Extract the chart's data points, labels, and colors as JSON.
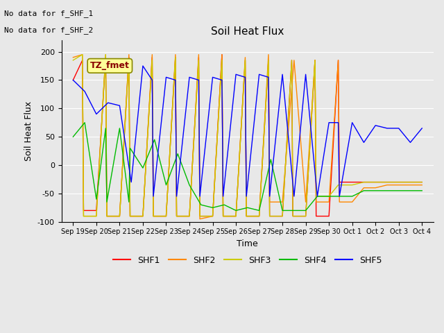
{
  "title": "Soil Heat Flux",
  "xlabel": "Time",
  "ylabel": "Soil Heat Flux",
  "ylim": [
    -100,
    220
  ],
  "yticks": [
    -100,
    -50,
    0,
    50,
    100,
    150,
    200
  ],
  "annotation_text1": "No data for f_SHF_1",
  "annotation_text2": "No data for f_SHF_2",
  "tz_label": "TZ_fmet",
  "legend_entries": [
    "SHF1",
    "SHF2",
    "SHF3",
    "SHF4",
    "SHF5"
  ],
  "colors": {
    "SHF1": "#ff0000",
    "SHF2": "#ff8800",
    "SHF3": "#cccc00",
    "SHF4": "#00bb00",
    "SHF5": "#0000ff"
  },
  "background_color": "#e8e8e8",
  "fig_background": "#e8e8e8",
  "tz_box_facecolor": "#ffff99",
  "tz_box_edgecolor": "#888800",
  "tz_text_color": "#880000",
  "x_tick_labels": [
    "Sep 19",
    "Sep 20",
    "Sep 21",
    "Sep 22",
    "Sep 23",
    "Sep 24",
    "Sep 25",
    "Sep 26",
    "Sep 27",
    "Sep 28",
    "Sep 29",
    "Sep 30",
    "Oct 1",
    "Oct 2",
    "Oct 3",
    "Oct 4"
  ],
  "SHF1_x": [
    0,
    0.4,
    0.45,
    1,
    1.4,
    1.45,
    2,
    2.4,
    2.45,
    3,
    3.4,
    3.45,
    4,
    4.4,
    4.45,
    5,
    5.4,
    5.45,
    6,
    6.4,
    6.45,
    7,
    7.4,
    7.45,
    8,
    8.4,
    8.45,
    9,
    9.4,
    9.45,
    10,
    10.4,
    10.45,
    11,
    11.4,
    11.45,
    12,
    12.5,
    13,
    13.5,
    14,
    14.5,
    15
  ],
  "SHF1_y": [
    150,
    185,
    -80,
    -80,
    190,
    -90,
    -90,
    190,
    -90,
    -90,
    190,
    -90,
    -90,
    190,
    -90,
    -90,
    190,
    -90,
    -90,
    195,
    -90,
    -90,
    185,
    -90,
    -90,
    185,
    -90,
    -90,
    185,
    -90,
    -90,
    185,
    -90,
    -90,
    185,
    -30,
    -30,
    -30,
    -30,
    -30,
    -30,
    -30,
    -30
  ],
  "SHF2_x": [
    0,
    0.4,
    0.45,
    1,
    1.4,
    1.45,
    2,
    2.4,
    2.45,
    3,
    3.4,
    3.45,
    4,
    4.4,
    4.45,
    5,
    5.4,
    5.45,
    6,
    6.4,
    6.45,
    7,
    7.4,
    7.45,
    8,
    8.4,
    8.45,
    9,
    9.5,
    10,
    10.4,
    10.45,
    11,
    11.4,
    11.45,
    12,
    12.5,
    13,
    13.5,
    14,
    14.5,
    15
  ],
  "SHF2_y": [
    190,
    195,
    -90,
    -90,
    195,
    -90,
    -90,
    195,
    -90,
    -90,
    195,
    -90,
    -90,
    195,
    -90,
    -90,
    195,
    -95,
    -90,
    195,
    -90,
    -90,
    190,
    -90,
    -90,
    195,
    -65,
    -65,
    185,
    -65,
    185,
    -65,
    -65,
    185,
    -65,
    -65,
    -40,
    -40,
    -35,
    -35,
    -35,
    -35
  ],
  "SHF3_x": [
    0,
    0.4,
    0.45,
    1,
    1.4,
    1.45,
    2,
    2.4,
    2.45,
    3,
    3.4,
    3.45,
    4,
    4.4,
    4.45,
    5,
    5.4,
    5.45,
    6,
    6.4,
    6.45,
    7,
    7.4,
    7.45,
    8,
    8.4,
    8.45,
    9,
    9.4,
    9.45,
    10,
    10.4,
    10.45,
    11,
    11.4,
    11.45,
    12,
    12.5,
    13,
    13.5,
    14,
    14.5,
    15
  ],
  "SHF3_y": [
    185,
    195,
    -90,
    -90,
    195,
    -90,
    -90,
    185,
    -90,
    -90,
    185,
    -90,
    -90,
    190,
    -90,
    -90,
    185,
    -90,
    -90,
    185,
    -90,
    -90,
    185,
    -90,
    -90,
    185,
    -90,
    -90,
    185,
    -90,
    -90,
    185,
    -55,
    -55,
    -35,
    -35,
    -35,
    -30,
    -30,
    -30,
    -30,
    -30,
    -30
  ],
  "SHF4_x": [
    0,
    0.5,
    1,
    1.4,
    1.45,
    2,
    2.4,
    2.45,
    3,
    3.5,
    4,
    4.5,
    5,
    5.5,
    6,
    6.5,
    7,
    7.5,
    8,
    8.5,
    9,
    9.5,
    10,
    10.5,
    11,
    11.5,
    12,
    12.5,
    13,
    13.5,
    14,
    14.5,
    15
  ],
  "SHF4_y": [
    50,
    75,
    -60,
    65,
    -65,
    65,
    -65,
    30,
    -5,
    45,
    -35,
    20,
    -35,
    -70,
    -75,
    -70,
    -80,
    -75,
    -80,
    10,
    -80,
    -80,
    -80,
    -55,
    -55,
    -55,
    -55,
    -45,
    -45,
    -45,
    -45,
    -45,
    -45
  ],
  "SHF5_x": [
    0,
    0.5,
    1,
    1.5,
    2,
    2.5,
    3,
    3.4,
    3.45,
    4,
    4.4,
    4.45,
    5,
    5.4,
    5.45,
    6,
    6.4,
    6.45,
    7,
    7.4,
    7.45,
    8,
    8.4,
    8.45,
    9,
    9.5,
    10,
    10.5,
    11,
    11.4,
    11.45,
    12,
    12.5,
    13,
    13.5,
    14,
    14.5,
    15
  ],
  "SHF5_y": [
    150,
    130,
    90,
    110,
    105,
    -30,
    175,
    150,
    -55,
    155,
    150,
    -55,
    155,
    150,
    -55,
    155,
    150,
    -55,
    160,
    155,
    -55,
    160,
    155,
    -55,
    160,
    -55,
    160,
    -55,
    75,
    75,
    -55,
    75,
    40,
    70,
    65,
    65,
    40,
    65
  ]
}
